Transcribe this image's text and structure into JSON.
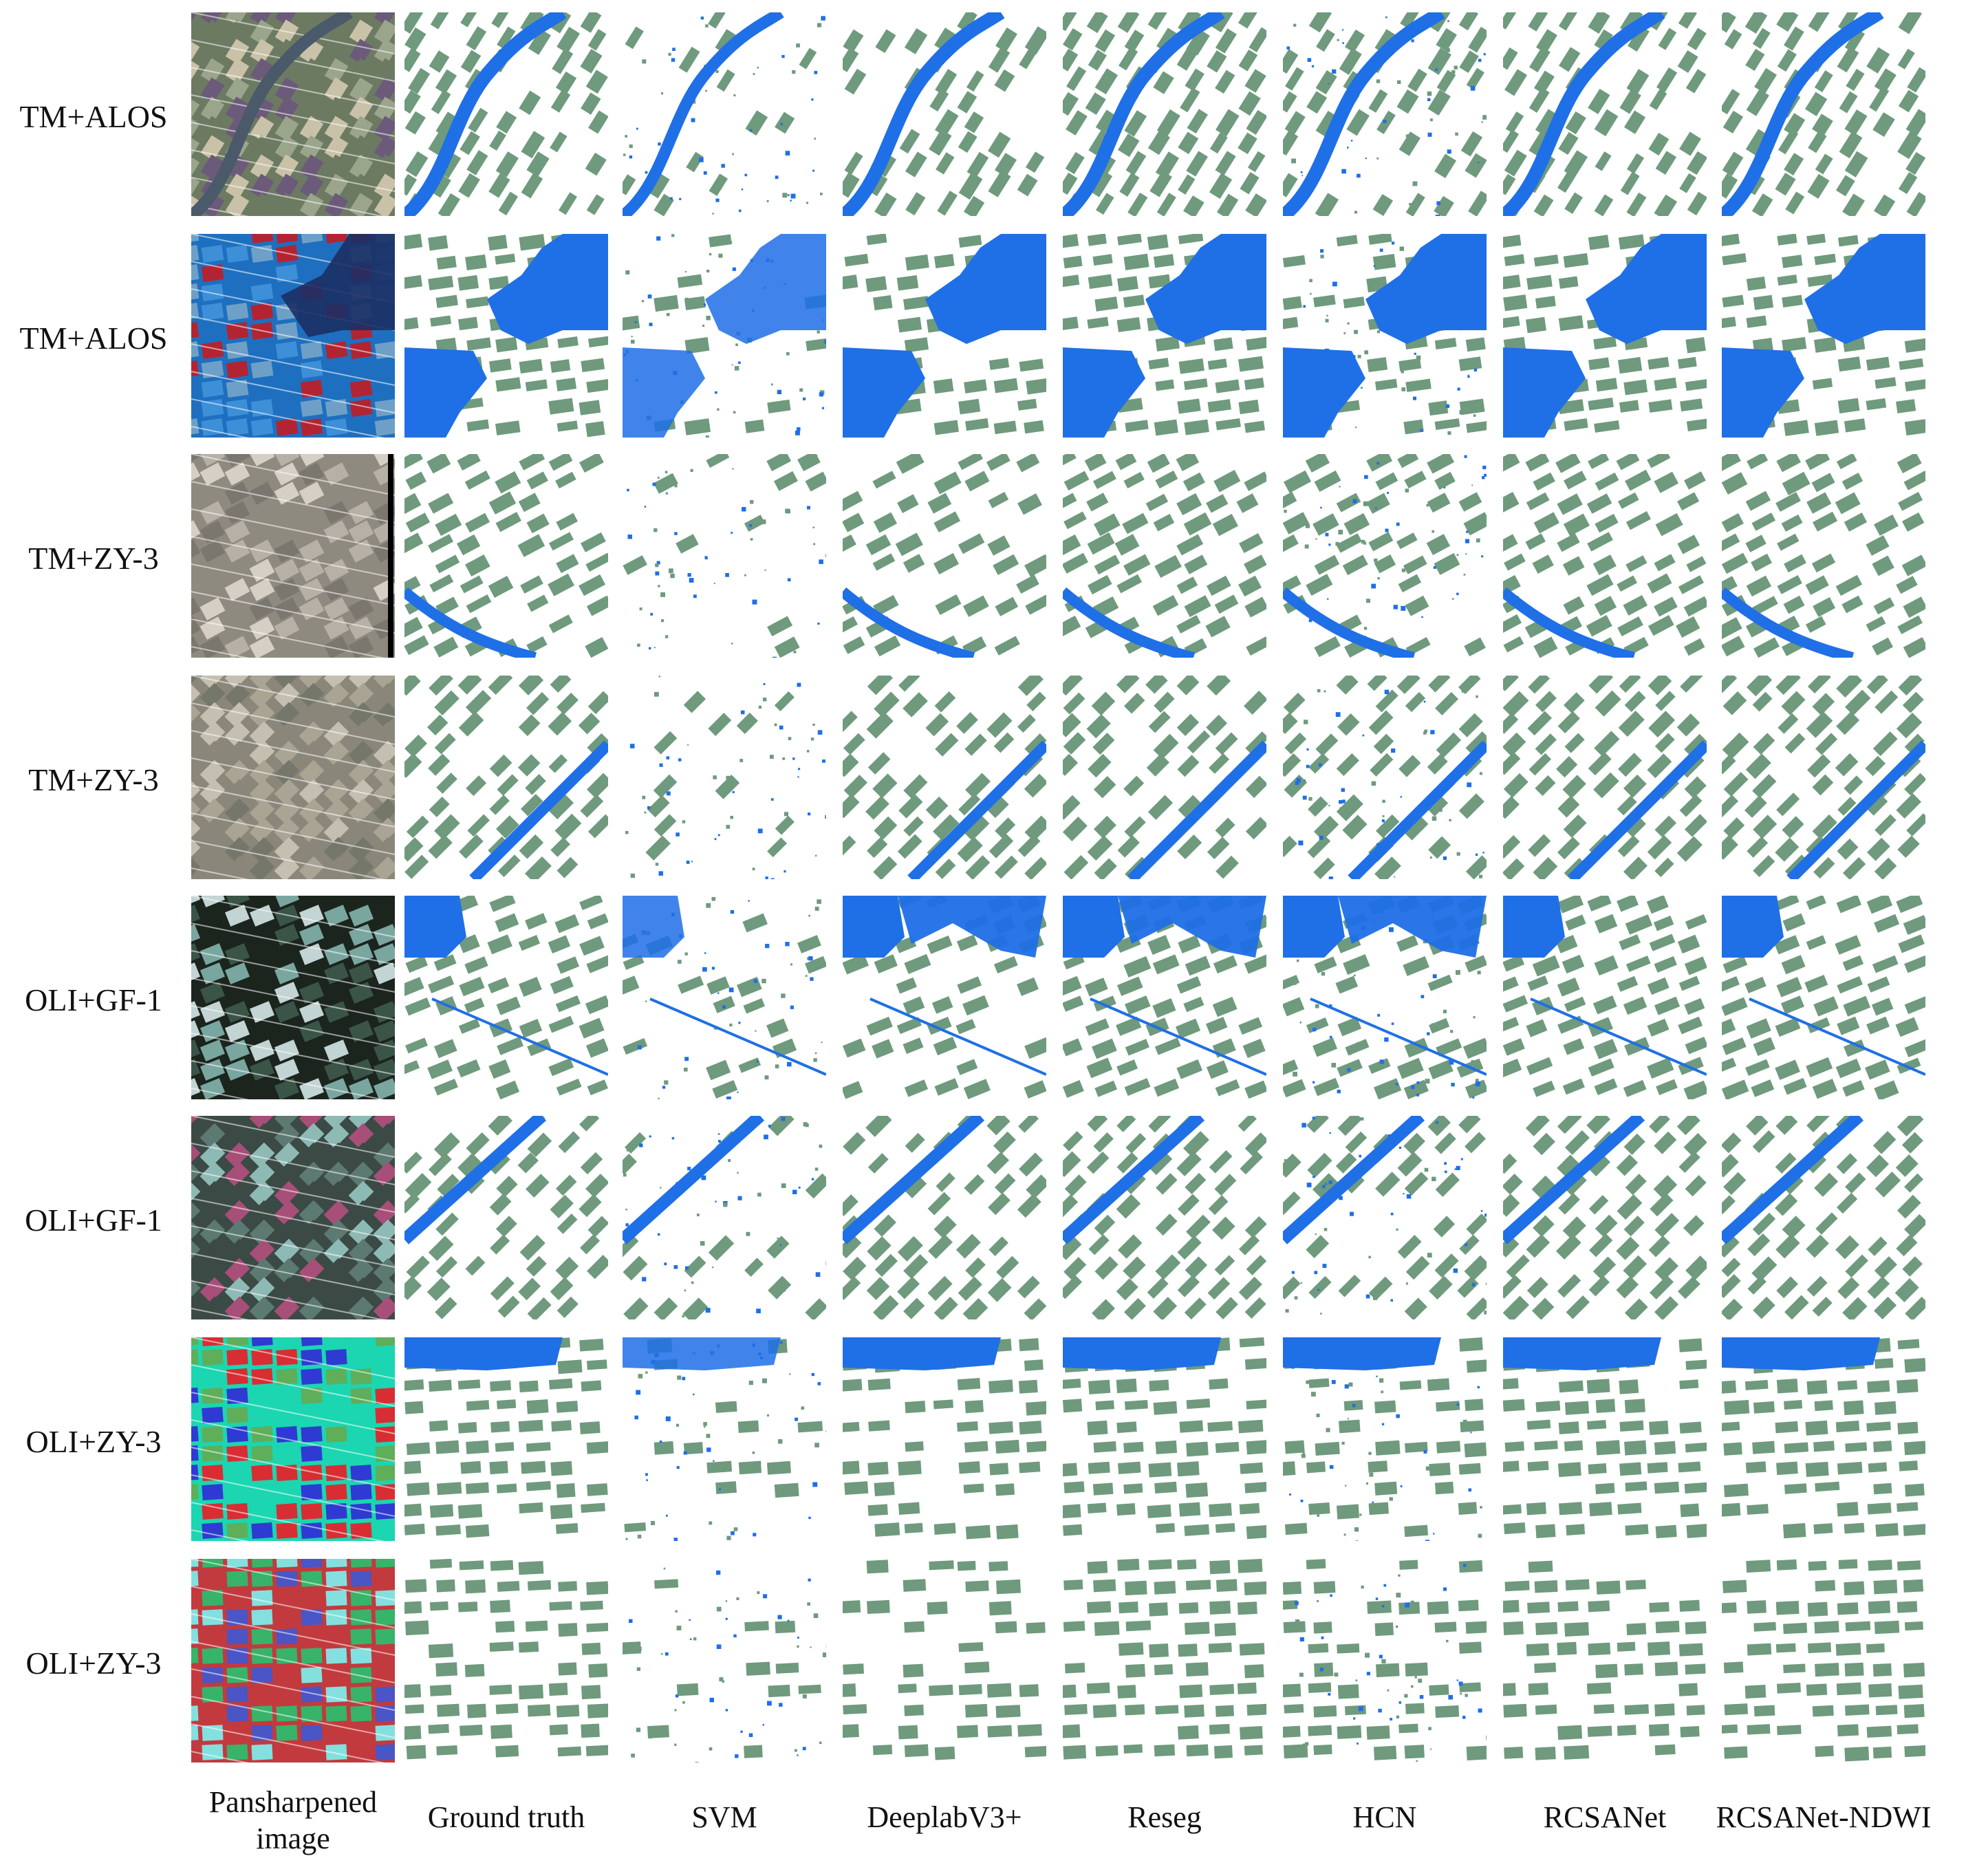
{
  "colors": {
    "background": "#ffffff",
    "farmland_green": "#6f9a7d",
    "water_blue": "#1f6fe7",
    "text": "#111111"
  },
  "row_labels": [
    "TM+ALOS",
    "TM+ALOS",
    "TM+ZY-3",
    "TM+ZY-3",
    "OLI+GF-1",
    "OLI+GF-1",
    "OLI+ZY-3",
    "OLI+ZY-3"
  ],
  "column_labels": [
    "Pansharpened\nimage",
    "Ground truth",
    "SVM",
    "DeeplabV3+",
    "Reseg",
    "HCN",
    "RCSANet",
    "RCSANet-NDWI"
  ],
  "tiles": {
    "image_column": "pansharpened-image",
    "mask_columns": [
      "ground-truth",
      "svm",
      "deeplabv3plus",
      "reseg",
      "hcn",
      "rcsanet",
      "rcsanet-ndwi"
    ]
  }
}
